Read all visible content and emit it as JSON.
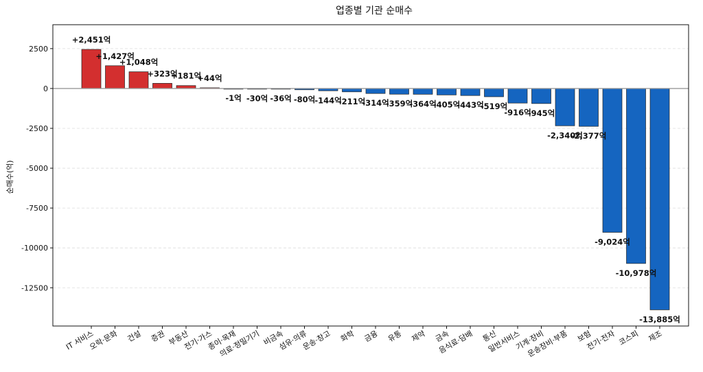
{
  "chart_data": {
    "type": "bar",
    "title": "업종별 기관 순매수",
    "ylabel": "순매수(억)",
    "xlabel": "",
    "ylim": [
      -14900,
      4000
    ],
    "yticks": [
      2500,
      0,
      -2500,
      -5000,
      -7500,
      -10000,
      -12500
    ],
    "ytick_labels": [
      "2500",
      "0",
      "-2500",
      "-5000",
      "-7500",
      "-10000",
      "-12500"
    ],
    "grid": "horizontal-dashed",
    "colors": {
      "positive": "#d32f2f",
      "negative": "#1565c0",
      "zero_line": "#999999"
    },
    "categories": [
      "IT 서비스",
      "오락·문화",
      "건설",
      "증권",
      "부동산",
      "전기·가스",
      "종이·목재",
      "의료·정밀기기",
      "비금속",
      "섬유·의류",
      "운송·창고",
      "화학",
      "금융",
      "유통",
      "제약",
      "금속",
      "음식료·담배",
      "통신",
      "일반서비스",
      "기계·장비",
      "운송장비·부품",
      "보험",
      "전기·전자",
      "코스피",
      "제조"
    ],
    "values": [
      2451,
      1427,
      1048,
      323,
      181,
      44,
      -1,
      -30,
      -36,
      -80,
      -144,
      -211,
      -314,
      -359,
      -364,
      -405,
      -443,
      -519,
      -916,
      -945,
      -2340,
      -2377,
      -9024,
      -10978,
      -13885
    ],
    "data_labels": [
      "+2,451억",
      "+1,427억",
      "+1,048억",
      "+323억",
      "+181억",
      "+44억",
      "-1억",
      "-30억",
      "-36억",
      "-80억",
      "-144억",
      "-211억",
      "-314억",
      "-359억",
      "-364억",
      "-405억",
      "-443억",
      "-519억",
      "-916억",
      "-945억",
      "-2,340억",
      "-2,377억",
      "-9,024억",
      "-10,978억",
      "-13,885억"
    ]
  }
}
